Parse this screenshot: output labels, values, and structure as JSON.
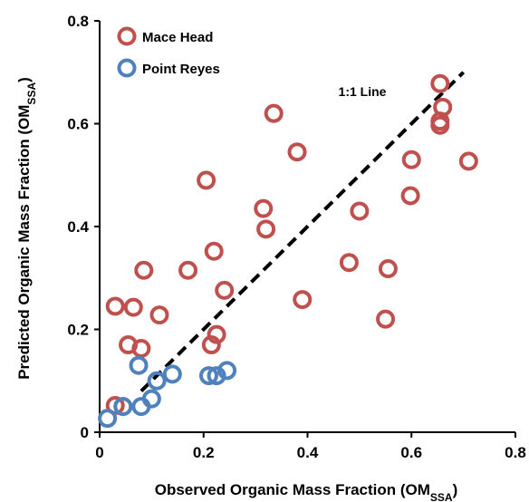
{
  "chart_data": {
    "type": "scatter",
    "title": "",
    "xlabel": "Observed Organic Mass Fraction (OM",
    "xlabel_sub": "SSA",
    "xlabel_end": ")",
    "ylabel": "Predicted Organic Mass Fraction (OM",
    "ylabel_sub": "SSA",
    "ylabel_end": ")",
    "xlim": [
      0,
      0.8
    ],
    "ylim": [
      0,
      0.8
    ],
    "xticks": [
      "0",
      "0.2",
      "0.4",
      "0.6",
      "0.8"
    ],
    "yticks": [
      "0",
      "0.2",
      "0.4",
      "0.6",
      "0.8"
    ],
    "grid": false,
    "legend_position": "top-left",
    "series": [
      {
        "name": "Mace Head",
        "color": "#c0504d",
        "marker": "open-circle",
        "points": [
          [
            0.655,
            0.678
          ],
          [
            0.66,
            0.632
          ],
          [
            0.655,
            0.605
          ],
          [
            0.655,
            0.597
          ],
          [
            0.71,
            0.527
          ],
          [
            0.335,
            0.62
          ],
          [
            0.38,
            0.545
          ],
          [
            0.205,
            0.49
          ],
          [
            0.6,
            0.53
          ],
          [
            0.598,
            0.46
          ],
          [
            0.315,
            0.435
          ],
          [
            0.32,
            0.395
          ],
          [
            0.5,
            0.43
          ],
          [
            0.22,
            0.352
          ],
          [
            0.085,
            0.315
          ],
          [
            0.17,
            0.315
          ],
          [
            0.48,
            0.33
          ],
          [
            0.555,
            0.318
          ],
          [
            0.24,
            0.276
          ],
          [
            0.39,
            0.258
          ],
          [
            0.03,
            0.245
          ],
          [
            0.065,
            0.243
          ],
          [
            0.115,
            0.228
          ],
          [
            0.55,
            0.22
          ],
          [
            0.225,
            0.19
          ],
          [
            0.215,
            0.17
          ],
          [
            0.055,
            0.17
          ],
          [
            0.08,
            0.163
          ],
          [
            0.03,
            0.052
          ],
          [
            0.045,
            0.05
          ]
        ]
      },
      {
        "name": "Point Reyes",
        "color": "#4f81bd",
        "marker": "open-circle",
        "points": [
          [
            0.075,
            0.13
          ],
          [
            0.14,
            0.113
          ],
          [
            0.245,
            0.12
          ],
          [
            0.21,
            0.11
          ],
          [
            0.225,
            0.11
          ],
          [
            0.11,
            0.1
          ],
          [
            0.1,
            0.065
          ],
          [
            0.08,
            0.05
          ],
          [
            0.045,
            0.05
          ],
          [
            0.015,
            0.027
          ]
        ]
      }
    ],
    "reference_line": {
      "label": "1:1 Line",
      "from": [
        0.08,
        0.08
      ],
      "to": [
        0.7,
        0.7
      ],
      "style": "dashed",
      "color": "#000000"
    }
  }
}
